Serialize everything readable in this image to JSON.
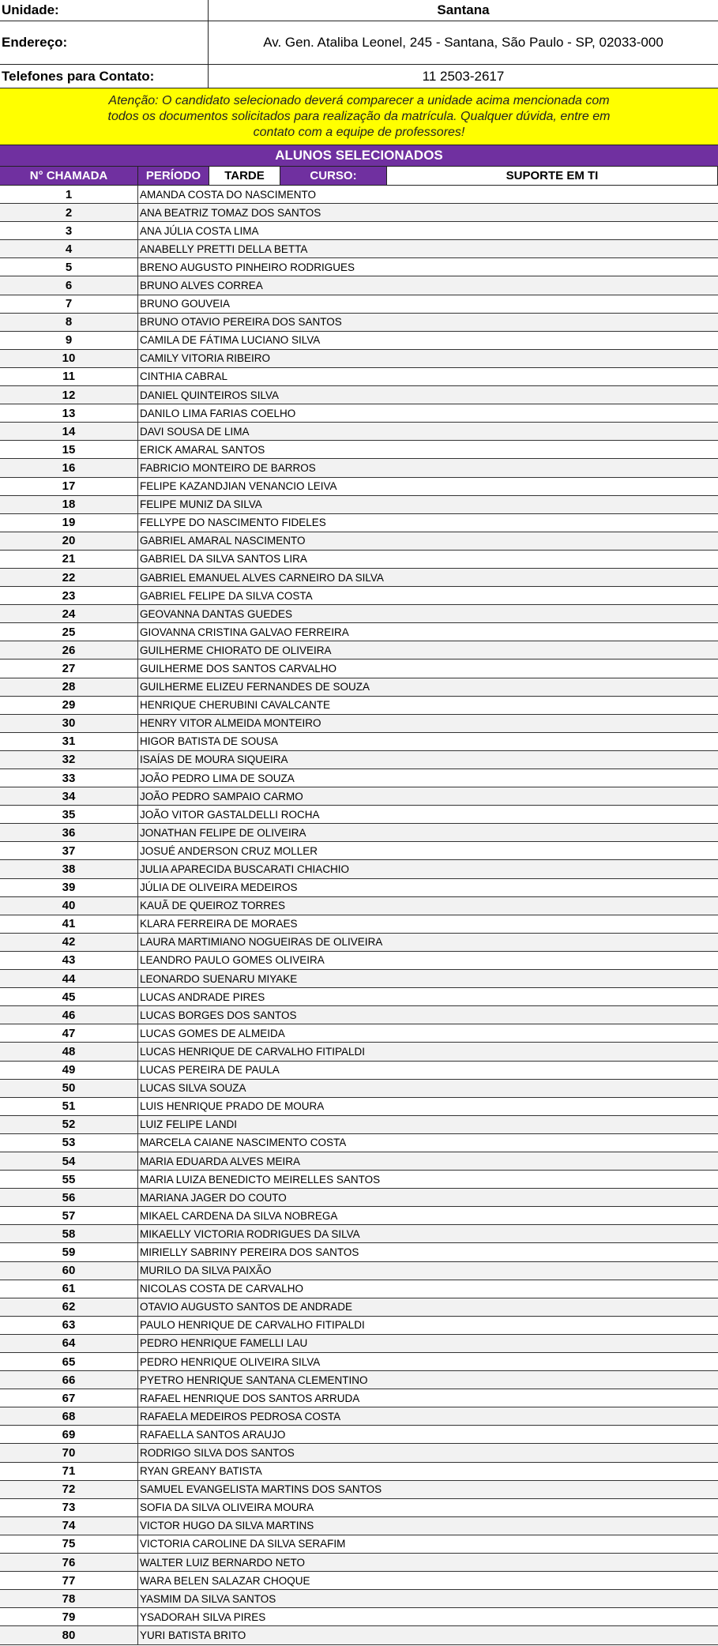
{
  "info": {
    "unidade_label": "Unidade:",
    "unidade": "Santana",
    "endereco_label": "Endereço:",
    "endereco": "Av. Gen. Ataliba Leonel, 245 - Santana, São Paulo - SP, 02033-000",
    "telefone_label": "Telefones para Contato:",
    "telefone": "11 2503-2617"
  },
  "notice": "Atenção: O candidato selecionado deverá comparecer a unidade acima mencionada com todos os documentos solicitados para realização da matrícula. Qualquer dúvida, entre em contato com a equipe de professores!",
  "title": "ALUNOS SELECIONADOS",
  "header": {
    "chamada": "N° CHAMADA",
    "periodo_label": "PERÍODO",
    "periodo": "TARDE",
    "curso_label": "CURSO:",
    "curso": "SUPORTE EM TI"
  },
  "colors": {
    "purple": "#7030a0",
    "yellow": "#ffff00",
    "row_alt": "#f2f2f2"
  },
  "students": [
    "AMANDA COSTA DO NASCIMENTO",
    "ANA BEATRIZ TOMAZ DOS SANTOS",
    "ANA JÚLIA COSTA LIMA",
    "ANABELLY PRETTI DELLA BETTA",
    "BRENO AUGUSTO PINHEIRO RODRIGUES",
    "BRUNO ALVES CORREA",
    "BRUNO GOUVEIA",
    "BRUNO OTAVIO PEREIRA DOS SANTOS",
    "CAMILA DE FÁTIMA LUCIANO SILVA",
    "CAMILY VITORIA RIBEIRO",
    "CINTHIA CABRAL",
    "DANIEL QUINTEIROS SILVA",
    "DANILO LIMA FARIAS COELHO",
    "DAVI SOUSA DE LIMA",
    "ERICK AMARAL SANTOS",
    "FABRICIO MONTEIRO DE BARROS",
    "FELIPE KAZANDJIAN VENANCIO LEIVA",
    "FELIPE MUNIZ DA SILVA",
    "FELLYPE DO NASCIMENTO FIDELES",
    "GABRIEL AMARAL NASCIMENTO",
    "GABRIEL DA SILVA SANTOS LIRA",
    "GABRIEL EMANUEL ALVES CARNEIRO DA SILVA",
    "GABRIEL FELIPE DA SILVA COSTA",
    "GEOVANNA DANTAS GUEDES",
    "GIOVANNA CRISTINA GALVAO FERREIRA",
    "GUILHERME CHIORATO DE OLIVEIRA",
    "GUILHERME DOS SANTOS CARVALHO",
    "GUILHERME ELIZEU FERNANDES DE SOUZA",
    "HENRIQUE CHERUBINI CAVALCANTE",
    "HENRY VITOR ALMEIDA MONTEIRO",
    "HIGOR BATISTA DE SOUSA",
    "ISAÍAS DE MOURA SIQUEIRA",
    "JOÃO PEDRO LIMA DE SOUZA",
    "JOÃO PEDRO SAMPAIO CARMO",
    "JOÃO VITOR GASTALDELLI ROCHA",
    "JONATHAN FELIPE DE OLIVEIRA",
    "JOSUÉ ANDERSON CRUZ MOLLER",
    "JULIA APARECIDA BUSCARATI CHIACHIO",
    "JÚLIA DE OLIVEIRA MEDEIROS",
    "KAUÃ DE QUEIROZ TORRES",
    "KLARA FERREIRA DE MORAES",
    "LAURA MARTIMIANO NOGUEIRAS DE OLIVEIRA",
    "LEANDRO PAULO GOMES OLIVEIRA",
    "LEONARDO SUENARU MIYAKE",
    "LUCAS ANDRADE PIRES",
    "LUCAS BORGES DOS SANTOS",
    "LUCAS GOMES DE ALMEIDA",
    "LUCAS HENRIQUE DE CARVALHO FITIPALDI",
    "LUCAS PEREIRA DE PAULA",
    "LUCAS SILVA SOUZA",
    "LUIS HENRIQUE PRADO DE MOURA",
    "LUIZ FELIPE LANDI",
    "MARCELA CAIANE NASCIMENTO COSTA",
    "MARIA EDUARDA ALVES MEIRA",
    "MARIA LUIZA BENEDICTO MEIRELLES SANTOS",
    "MARIANA JAGER DO COUTO",
    "MIKAEL CARDENA DA SILVA NOBREGA",
    "MIKAELLY VICTORIA RODRIGUES DA SILVA",
    "MIRIELLY SABRINY PEREIRA DOS SANTOS",
    "MURILO DA SILVA PAIXÃO",
    "NICOLAS COSTA DE CARVALHO",
    "OTAVIO AUGUSTO SANTOS DE ANDRADE",
    "PAULO HENRIQUE DE CARVALHO FITIPALDI",
    "PEDRO HENRIQUE FAMELLI LAU",
    "PEDRO HENRIQUE OLIVEIRA SILVA",
    "PYETRO HENRIQUE SANTANA CLEMENTINO",
    "RAFAEL HENRIQUE DOS SANTOS ARRUDA",
    "RAFAELA MEDEIROS PEDROSA COSTA",
    "RAFAELLA SANTOS ARAUJO",
    "RODRIGO SILVA DOS SANTOS",
    "RYAN GREANY BATISTA",
    "SAMUEL EVANGELISTA MARTINS DOS SANTOS",
    "SOFIA DA SILVA OLIVEIRA MOURA",
    "VICTOR HUGO DA SILVA MARTINS",
    "VICTORIA CAROLINE DA SILVA SERAFIM",
    "WALTER LUIZ BERNARDO NETO",
    "WARA BELEN SALAZAR CHOQUE",
    "YASMIM DA SILVA SANTOS",
    "YSADORAH SILVA PIRES",
    "YURI BATISTA BRITO"
  ]
}
